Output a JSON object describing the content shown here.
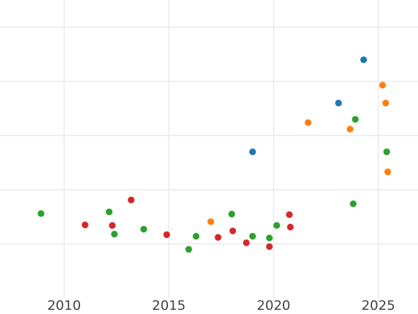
{
  "figure": {
    "background": "#ffffff",
    "title": ""
  },
  "chart_data": {
    "type": "scatter",
    "title": "",
    "xlabel": "",
    "ylabel": "",
    "grid": true,
    "legend": "none",
    "x_axis": {
      "tick_values": [
        2010,
        2015,
        2020,
        2025
      ],
      "tick_labels": [
        "2010",
        "2015",
        "2020",
        "2025"
      ],
      "approx_range": [
        2006.95,
        2026.9
      ]
    },
    "y_axis": {
      "tick_labels_visible": false,
      "note": "y tick labels are cropped out of view; values below are in gridline units, 1 unit = one gridline spacing, 0 = bottom visible gridline",
      "gridline_units": [
        0,
        1,
        2,
        3,
        4
      ]
    },
    "series": [
      {
        "name": "blue",
        "color": "#1f77b4",
        "points": [
          {
            "x": 2019.0,
            "y": 1.7
          },
          {
            "x": 2023.1,
            "y": 2.6
          },
          {
            "x": 2024.3,
            "y": 3.4
          }
        ]
      },
      {
        "name": "orange",
        "color": "#ff7f0e",
        "points": [
          {
            "x": 2017.0,
            "y": 0.41
          },
          {
            "x": 2021.65,
            "y": 2.24
          },
          {
            "x": 2023.65,
            "y": 2.12
          },
          {
            "x": 2025.2,
            "y": 2.93
          },
          {
            "x": 2025.35,
            "y": 2.6
          },
          {
            "x": 2025.45,
            "y": 1.33
          }
        ]
      },
      {
        "name": "green",
        "color": "#2ca02c",
        "points": [
          {
            "x": 2008.9,
            "y": 0.56
          },
          {
            "x": 2012.15,
            "y": 0.59
          },
          {
            "x": 2012.4,
            "y": 0.18
          },
          {
            "x": 2013.8,
            "y": 0.27
          },
          {
            "x": 2015.95,
            "y": -0.1
          },
          {
            "x": 2016.3,
            "y": 0.14
          },
          {
            "x": 2018.0,
            "y": 0.55
          },
          {
            "x": 2019.0,
            "y": 0.14
          },
          {
            "x": 2019.8,
            "y": 0.11
          },
          {
            "x": 2020.15,
            "y": 0.34
          },
          {
            "x": 2023.8,
            "y": 0.74
          },
          {
            "x": 2023.9,
            "y": 2.3
          },
          {
            "x": 2025.4,
            "y": 1.7
          }
        ]
      },
      {
        "name": "red",
        "color": "#d62728",
        "points": [
          {
            "x": 2011.0,
            "y": 0.35
          },
          {
            "x": 2012.3,
            "y": 0.34
          },
          {
            "x": 2013.2,
            "y": 0.81
          },
          {
            "x": 2014.9,
            "y": 0.17
          },
          {
            "x": 2017.35,
            "y": 0.12
          },
          {
            "x": 2018.05,
            "y": 0.24
          },
          {
            "x": 2018.7,
            "y": 0.02
          },
          {
            "x": 2019.8,
            "y": -0.05
          },
          {
            "x": 2020.75,
            "y": 0.54
          },
          {
            "x": 2020.8,
            "y": 0.31
          }
        ]
      }
    ]
  }
}
